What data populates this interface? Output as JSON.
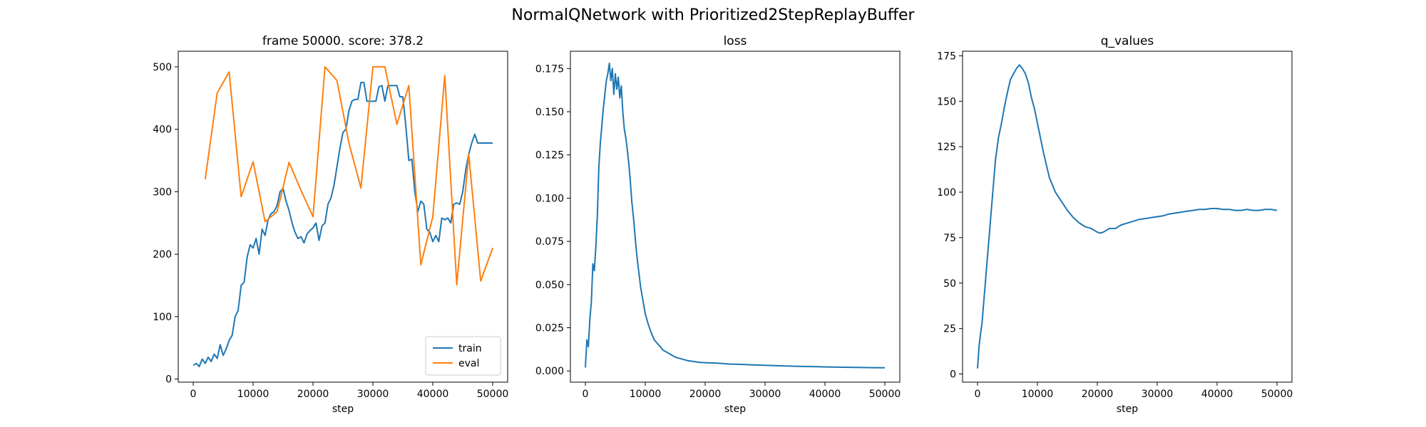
{
  "figure": {
    "suptitle": "NormalQNetwork with Prioritized2StepReplayBuffer"
  },
  "colors": {
    "train": "#1f77b4",
    "eval": "#ff7f0e"
  },
  "chart_data": [
    {
      "type": "line",
      "title": "frame 50000. score: 378.2",
      "xlabel": "step",
      "ylabel": "",
      "xlim": [
        -2500,
        52500
      ],
      "ylim": [
        -5,
        525
      ],
      "xticks": [
        0,
        10000,
        20000,
        30000,
        40000,
        50000
      ],
      "yticks": [
        0,
        100,
        200,
        300,
        400,
        500
      ],
      "legend": {
        "position": "lower-right"
      },
      "series": [
        {
          "name": "train",
          "color": "#1f77b4",
          "x": [
            0,
            500,
            1000,
            1500,
            2000,
            2500,
            3000,
            3500,
            4000,
            4500,
            5000,
            5500,
            6000,
            6500,
            7000,
            7500,
            8000,
            8500,
            9000,
            9500,
            10000,
            10500,
            11000,
            11500,
            12000,
            12500,
            13000,
            13500,
            14000,
            14500,
            15000,
            15500,
            16000,
            16500,
            17000,
            17500,
            18000,
            18500,
            19000,
            19500,
            20000,
            20500,
            21000,
            21500,
            22000,
            22500,
            23000,
            23500,
            24000,
            24500,
            25000,
            25500,
            26000,
            26500,
            27000,
            27500,
            28000,
            28500,
            29000,
            29500,
            30000,
            30500,
            31000,
            31500,
            32000,
            32500,
            33000,
            33500,
            34000,
            34500,
            35000,
            35500,
            36000,
            36500,
            37000,
            37500,
            38000,
            38500,
            39000,
            39500,
            40000,
            40500,
            41000,
            41500,
            42000,
            42500,
            43000,
            43500,
            44000,
            44500,
            45000,
            45500,
            46000,
            46500,
            47000,
            47500,
            48000,
            48500,
            49000,
            49500,
            50000
          ],
          "y": [
            22,
            25,
            20,
            32,
            25,
            35,
            28,
            40,
            33,
            55,
            38,
            48,
            62,
            70,
            100,
            110,
            150,
            155,
            195,
            215,
            210,
            225,
            200,
            240,
            230,
            255,
            265,
            268,
            278,
            300,
            305,
            285,
            270,
            250,
            235,
            225,
            228,
            218,
            232,
            238,
            242,
            250,
            222,
            245,
            250,
            280,
            290,
            310,
            340,
            370,
            395,
            400,
            430,
            445,
            448,
            448,
            475,
            475,
            445,
            445,
            445,
            445,
            468,
            470,
            445,
            470,
            470,
            470,
            470,
            452,
            452,
            405,
            350,
            352,
            300,
            268,
            285,
            280,
            240,
            235,
            220,
            230,
            220,
            258,
            255,
            258,
            250,
            280,
            282,
            280,
            300,
            335,
            360,
            378,
            392,
            378,
            378,
            378,
            378,
            378,
            378
          ]
        },
        {
          "name": "eval",
          "color": "#ff7f0e",
          "x": [
            2000,
            4000,
            6000,
            8000,
            10000,
            12000,
            14000,
            16000,
            18000,
            20000,
            22000,
            24000,
            26000,
            28000,
            30000,
            32000,
            34000,
            36000,
            38000,
            40000,
            42000,
            44000,
            46000,
            48000,
            50000
          ],
          "y": [
            320,
            458,
            492,
            292,
            348,
            252,
            268,
            347,
            302,
            260,
            500,
            478,
            378,
            306,
            500,
            500,
            408,
            470,
            183,
            260,
            486,
            151,
            360,
            157,
            210
          ]
        }
      ]
    },
    {
      "type": "line",
      "title": "loss",
      "xlabel": "step",
      "ylabel": "",
      "xlim": [
        -2500,
        52500
      ],
      "ylim": [
        -0.0065,
        0.185
      ],
      "xticks": [
        0,
        10000,
        20000,
        30000,
        40000,
        50000
      ],
      "yticks": [
        0.0,
        0.025,
        0.05,
        0.075,
        0.1,
        0.125,
        0.15,
        0.175
      ],
      "ytick_decimals": 3,
      "series": [
        {
          "color": "#1f77b4",
          "x": [
            0,
            250,
            500,
            750,
            1000,
            1250,
            1500,
            1750,
            2000,
            2250,
            2500,
            2750,
            3000,
            3250,
            3500,
            3750,
            4000,
            4250,
            4500,
            4750,
            5000,
            5250,
            5500,
            5750,
            6000,
            6250,
            6500,
            6750,
            7000,
            7250,
            7500,
            7750,
            8000,
            8250,
            8500,
            8750,
            9000,
            9250,
            9500,
            9750,
            10000,
            10500,
            11000,
            11500,
            12000,
            12500,
            13000,
            13500,
            14000,
            14500,
            15000,
            16000,
            17000,
            18000,
            19000,
            20000,
            22000,
            24000,
            26000,
            28000,
            30000,
            32000,
            34000,
            36000,
            38000,
            40000,
            42000,
            44000,
            46000,
            48000,
            50000
          ],
          "y": [
            0.002,
            0.018,
            0.014,
            0.03,
            0.04,
            0.062,
            0.058,
            0.072,
            0.09,
            0.118,
            0.132,
            0.142,
            0.152,
            0.16,
            0.168,
            0.172,
            0.178,
            0.168,
            0.175,
            0.16,
            0.172,
            0.163,
            0.17,
            0.158,
            0.165,
            0.15,
            0.14,
            0.135,
            0.128,
            0.12,
            0.11,
            0.098,
            0.09,
            0.08,
            0.07,
            0.062,
            0.055,
            0.048,
            0.043,
            0.038,
            0.033,
            0.027,
            0.022,
            0.018,
            0.016,
            0.014,
            0.012,
            0.011,
            0.01,
            0.009,
            0.008,
            0.007,
            0.006,
            0.0055,
            0.005,
            0.0048,
            0.0045,
            0.004,
            0.0038,
            0.0035,
            0.0033,
            0.003,
            0.0028,
            0.0026,
            0.0025,
            0.0023,
            0.0022,
            0.0021,
            0.002,
            0.0019,
            0.0018
          ]
        }
      ]
    },
    {
      "type": "line",
      "title": "q_values",
      "xlabel": "step",
      "ylabel": "",
      "xlim": [
        -2500,
        52500
      ],
      "ylim": [
        -4.5,
        177.5
      ],
      "xticks": [
        0,
        10000,
        20000,
        30000,
        40000,
        50000
      ],
      "yticks": [
        0,
        25,
        50,
        75,
        100,
        125,
        150,
        175
      ],
      "series": [
        {
          "color": "#1f77b4",
          "x": [
            0,
            250,
            500,
            750,
            1000,
            1250,
            1500,
            1750,
            2000,
            2250,
            2500,
            2750,
            3000,
            3500,
            4000,
            4500,
            5000,
            5500,
            6000,
            6500,
            7000,
            7500,
            8000,
            8500,
            9000,
            9500,
            10000,
            10500,
            11000,
            11500,
            12000,
            12500,
            13000,
            14000,
            15000,
            16000,
            17000,
            18000,
            19000,
            20000,
            20500,
            21000,
            21500,
            22000,
            23000,
            24000,
            25000,
            26000,
            27000,
            28000,
            29000,
            30000,
            31000,
            32000,
            33000,
            34000,
            35000,
            36000,
            37000,
            38000,
            39000,
            40000,
            41000,
            42000,
            43000,
            44000,
            45000,
            46000,
            47000,
            48000,
            49000,
            50000
          ],
          "y": [
            3,
            15,
            22,
            28,
            38,
            48,
            58,
            68,
            78,
            88,
            98,
            108,
            118,
            130,
            138,
            147,
            155,
            162,
            165,
            168,
            170,
            168,
            165,
            160,
            152,
            146,
            138,
            130,
            122,
            115,
            108,
            104,
            100,
            95,
            90,
            86,
            83,
            81,
            80,
            78,
            77.5,
            78,
            79,
            80,
            80,
            82,
            83,
            84,
            85,
            85.5,
            86,
            86.5,
            87,
            88,
            88.5,
            89,
            89.5,
            90,
            90.5,
            90.5,
            91,
            91,
            90.5,
            90.5,
            90,
            90,
            90.5,
            90,
            90,
            90.5,
            90.5,
            90
          ]
        }
      ]
    }
  ]
}
